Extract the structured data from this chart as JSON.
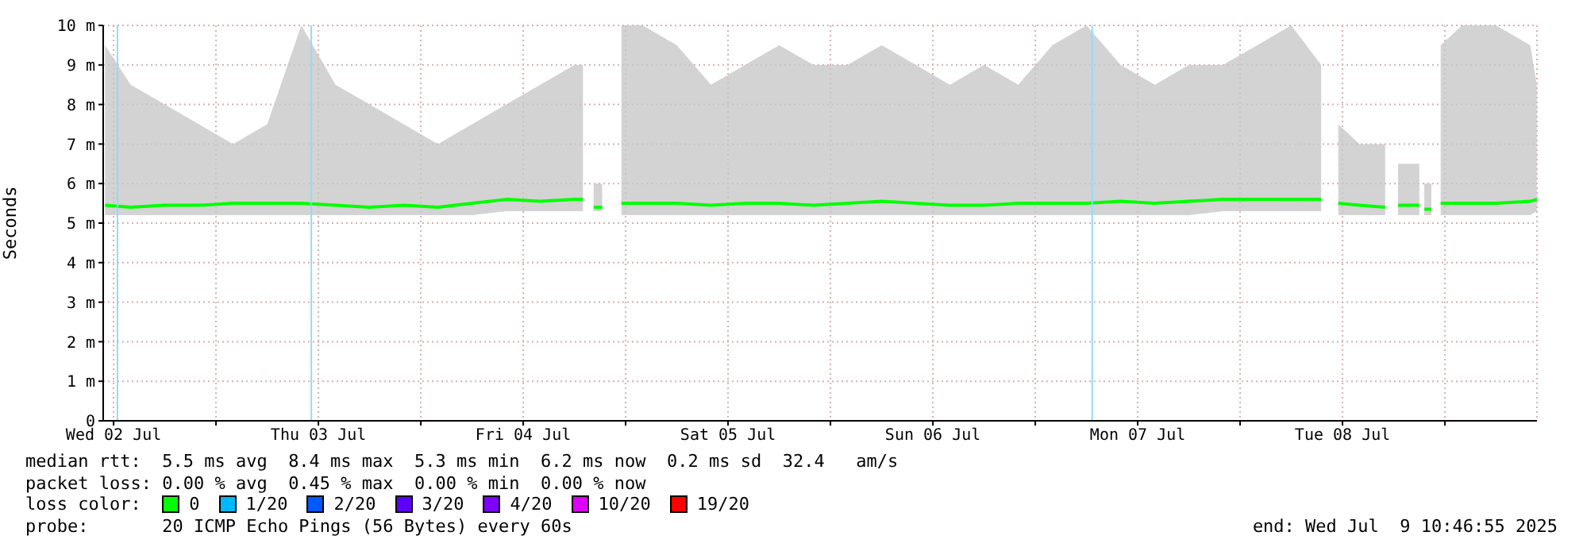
{
  "chart_data": {
    "type": "line",
    "ylabel": "Seconds",
    "legend_title": "loss color:",
    "legend": "bottom",
    "grid": true,
    "marker": "none",
    "line_style": "solid",
    "xlim": [
      "2025-07-02T10:47",
      "2025-07-09T10:47"
    ],
    "xticks": [
      {
        "value": "2025-07-02T12:00",
        "label": "Wed 02 Jul"
      },
      {
        "value": "2025-07-03T00:00",
        "label": null
      },
      {
        "value": "2025-07-03T12:00",
        "label": "Thu 03 Jul"
      },
      {
        "value": "2025-07-04T00:00",
        "label": null
      },
      {
        "value": "2025-07-04T12:00",
        "label": "Fri 04 Jul"
      },
      {
        "value": "2025-07-05T00:00",
        "label": null
      },
      {
        "value": "2025-07-05T12:00",
        "label": "Sat 05 Jul"
      },
      {
        "value": "2025-07-06T00:00",
        "label": null
      },
      {
        "value": "2025-07-06T12:00",
        "label": "Sun 06 Jul"
      },
      {
        "value": "2025-07-07T00:00",
        "label": null
      },
      {
        "value": "2025-07-07T12:00",
        "label": "Mon 07 Jul"
      },
      {
        "value": "2025-07-08T00:00",
        "label": null
      },
      {
        "value": "2025-07-08T12:00",
        "label": "Tue 08 Jul"
      },
      {
        "value": "2025-07-09T00:00",
        "label": null
      }
    ],
    "ylim": [
      0,
      10
    ],
    "yticks": [
      0,
      {
        "value": 1,
        "label": "1 m"
      },
      {
        "value": 2,
        "label": "2 m"
      },
      {
        "value": 3,
        "label": "3 m"
      },
      {
        "value": 4,
        "label": "4 m"
      },
      {
        "value": 5,
        "label": "5 m"
      },
      {
        "value": 6,
        "label": "6 m"
      },
      {
        "value": 7,
        "label": "7 m"
      },
      {
        "value": 8,
        "label": "8 m"
      },
      {
        "value": 9,
        "label": "9 m"
      },
      {
        "value": 10,
        "label": "10 m"
      }
    ],
    "x": [
      "2025-07-02T11:00",
      "2025-07-02T14:00",
      "2025-07-02T18:00",
      "2025-07-02T22:00",
      "2025-07-03T02:00",
      "2025-07-03T06:00",
      "2025-07-03T10:00",
      "2025-07-03T14:00",
      "2025-07-03T18:00",
      "2025-07-03T22:00",
      "2025-07-04T02:00",
      "2025-07-04T06:00",
      "2025-07-04T10:00",
      "2025-07-04T14:00",
      "2025-07-04T18:00",
      "2025-07-04T19:00",
      "2025-07-04T20:00",
      "2025-07-04T20:15",
      "2025-07-04T21:15",
      "2025-07-04T21:30",
      "2025-07-04T23:30",
      "2025-07-05T02:00",
      "2025-07-05T06:00",
      "2025-07-05T10:00",
      "2025-07-05T14:00",
      "2025-07-05T18:00",
      "2025-07-05T22:00",
      "2025-07-06T02:00",
      "2025-07-06T06:00",
      "2025-07-06T10:00",
      "2025-07-06T14:00",
      "2025-07-06T18:00",
      "2025-07-06T22:00",
      "2025-07-07T02:00",
      "2025-07-07T06:00",
      "2025-07-07T10:00",
      "2025-07-07T14:00",
      "2025-07-07T18:00",
      "2025-07-07T22:00",
      "2025-07-08T02:00",
      "2025-07-08T06:00",
      "2025-07-08T09:30",
      "2025-07-08T10:30",
      "2025-07-08T11:30",
      "2025-07-08T14:00",
      "2025-07-08T17:00",
      "2025-07-08T18:00",
      "2025-07-08T18:30",
      "2025-07-08T21:00",
      "2025-07-08T21:30",
      "2025-07-08T21:35",
      "2025-07-08T22:25",
      "2025-07-08T22:30",
      "2025-07-08T23:30",
      "2025-07-09T02:00",
      "2025-07-09T06:00",
      "2025-07-09T10:00",
      "2025-07-09T10:46"
    ],
    "series": [
      {
        "name": "0",
        "color": "#00ff00",
        "values": [
          5.45,
          5.4,
          5.45,
          5.45,
          5.5,
          5.5,
          5.5,
          5.45,
          5.4,
          5.45,
          5.4,
          5.5,
          5.6,
          5.55,
          5.6,
          5.6,
          null,
          5.4,
          5.4,
          null,
          5.5,
          5.5,
          5.5,
          5.45,
          5.5,
          5.5,
          5.45,
          5.5,
          5.55,
          5.5,
          5.45,
          5.45,
          5.5,
          5.5,
          5.5,
          5.55,
          5.5,
          5.55,
          5.6,
          5.6,
          5.6,
          5.6,
          null,
          5.5,
          5.45,
          5.4,
          null,
          5.45,
          5.45,
          null,
          5.35,
          5.35,
          null,
          5.5,
          5.5,
          5.5,
          5.55,
          5.6
        ],
        "lower": [
          5.2,
          5.2,
          5.2,
          5.2,
          5.2,
          5.2,
          5.2,
          5.2,
          5.2,
          5.2,
          5.2,
          5.2,
          5.3,
          5.3,
          5.3,
          5.3,
          null,
          5.3,
          5.3,
          null,
          5.2,
          5.2,
          5.2,
          5.2,
          5.2,
          5.2,
          5.2,
          5.2,
          5.2,
          5.2,
          5.2,
          5.2,
          5.2,
          5.2,
          5.2,
          5.2,
          5.2,
          5.2,
          5.3,
          5.3,
          5.3,
          5.3,
          null,
          5.2,
          5.2,
          5.2,
          null,
          5.2,
          5.2,
          null,
          5.2,
          5.2,
          null,
          5.2,
          5.2,
          5.2,
          5.2,
          5.3
        ],
        "upper": [
          9.5,
          8.5,
          8,
          7.5,
          7,
          7.5,
          10,
          8.5,
          8,
          7.5,
          7,
          7.5,
          8,
          8.5,
          9,
          9,
          null,
          6,
          6,
          null,
          10,
          10,
          9.5,
          8.5,
          9,
          9.5,
          9,
          9,
          9.5,
          9,
          8.5,
          9,
          8.5,
          9.5,
          10,
          9,
          8.5,
          9,
          9,
          9.5,
          10,
          9,
          null,
          7.5,
          7,
          7,
          null,
          6.5,
          6.5,
          null,
          6,
          6,
          null,
          9.5,
          10,
          10,
          9.5,
          8.5
        ]
      },
      {
        "name": "1/20",
        "color": "#00b8ff",
        "values": [
          null,
          null,
          null,
          null,
          null,
          null,
          null,
          null,
          null,
          null,
          null,
          null,
          null,
          null,
          null,
          null,
          null,
          null,
          null,
          null,
          null,
          null,
          null,
          null,
          null,
          null,
          null,
          null,
          null,
          null,
          null,
          null,
          null,
          null,
          null,
          null,
          null,
          null,
          null,
          null,
          null,
          null,
          null,
          null,
          null,
          null,
          null,
          null,
          null,
          null,
          null,
          null,
          null,
          null,
          null,
          null,
          null,
          null
        ]
      },
      {
        "name": "2/20",
        "color": "#0059ff",
        "values": [
          null,
          null,
          null,
          null,
          null,
          null,
          null,
          null,
          null,
          null,
          null,
          null,
          null,
          null,
          null,
          null,
          null,
          null,
          null,
          null,
          null,
          null,
          null,
          null,
          null,
          null,
          null,
          null,
          null,
          null,
          null,
          null,
          null,
          null,
          null,
          null,
          null,
          null,
          null,
          null,
          null,
          null,
          null,
          null,
          null,
          null,
          null,
          null,
          null,
          null,
          null,
          null,
          null,
          null,
          null,
          null,
          null,
          null
        ]
      },
      {
        "name": "3/20",
        "color": "#5e00ff",
        "values": [
          null,
          null,
          null,
          null,
          null,
          null,
          null,
          null,
          null,
          null,
          null,
          null,
          null,
          null,
          null,
          null,
          null,
          null,
          null,
          null,
          null,
          null,
          null,
          null,
          null,
          null,
          null,
          null,
          null,
          null,
          null,
          null,
          null,
          null,
          null,
          null,
          null,
          null,
          null,
          null,
          null,
          null,
          null,
          null,
          null,
          null,
          null,
          null,
          null,
          null,
          null,
          null,
          null,
          null,
          null,
          null,
          null,
          null
        ]
      },
      {
        "name": "4/20",
        "color": "#7e00ff",
        "values": [
          null,
          null,
          null,
          null,
          null,
          null,
          null,
          null,
          null,
          null,
          null,
          null,
          null,
          null,
          null,
          null,
          null,
          null,
          null,
          null,
          null,
          null,
          null,
          null,
          null,
          null,
          null,
          null,
          null,
          null,
          null,
          null,
          null,
          null,
          null,
          null,
          null,
          null,
          null,
          null,
          null,
          null,
          null,
          null,
          null,
          null,
          null,
          null,
          null,
          null,
          null,
          null,
          null,
          null,
          null,
          null,
          null,
          null
        ]
      },
      {
        "name": "10/20",
        "color": "#dd00ff",
        "values": [
          null,
          null,
          null,
          null,
          null,
          null,
          null,
          null,
          null,
          null,
          null,
          null,
          null,
          null,
          null,
          null,
          null,
          null,
          null,
          null,
          null,
          null,
          null,
          null,
          null,
          null,
          null,
          null,
          null,
          null,
          null,
          null,
          null,
          null,
          null,
          null,
          null,
          null,
          null,
          null,
          null,
          null,
          null,
          null,
          null,
          null,
          null,
          null,
          null,
          null,
          null,
          null,
          null,
          null,
          null,
          null,
          null,
          null
        ]
      },
      {
        "name": "19/20",
        "color": "#ff0000",
        "values": [
          null,
          null,
          null,
          null,
          null,
          null,
          null,
          null,
          null,
          null,
          null,
          null,
          null,
          null,
          null,
          null,
          null,
          null,
          null,
          null,
          null,
          null,
          null,
          null,
          null,
          null,
          null,
          null,
          null,
          null,
          null,
          null,
          null,
          null,
          null,
          null,
          null,
          null,
          null,
          null,
          null,
          null,
          null,
          null,
          null,
          null,
          null,
          null,
          null,
          null,
          null,
          null,
          null,
          null,
          null,
          null,
          null,
          null
        ]
      }
    ],
    "ref_lines": [
      {
        "axis": "x",
        "value": "2025-07-02T12:27",
        "label": null,
        "color": "#8fdcff"
      },
      {
        "axis": "x",
        "value": "2025-07-03T11:10",
        "label": null,
        "color": "#8fdcff"
      },
      {
        "axis": "x",
        "value": "2025-07-07T06:40",
        "label": null,
        "color": "#8fdcff"
      }
    ],
    "annotations": [
      "median rtt:  5.5 ms avg  8.4 ms max  5.3 ms min  6.2 ms now  0.2 ms sd  32.4   am/s",
      "packet loss: 0.00 % avg  0.45 % max  0.00 % min  0.00 % now",
      "probe:       20 ICMP Echo Pings (56 Bytes) every 60s",
      "end: Wed Jul  9 10:46:55 2025"
    ]
  }
}
